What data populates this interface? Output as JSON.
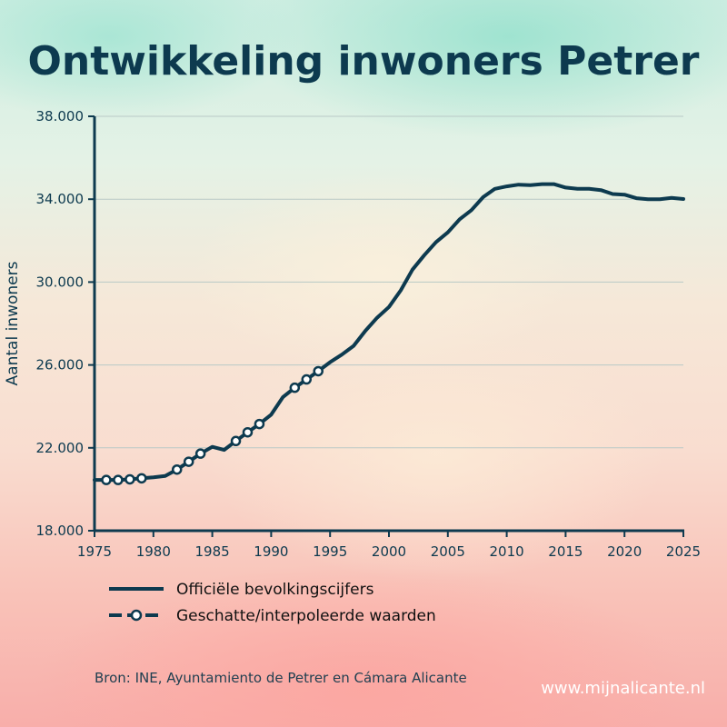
{
  "chart_data": {
    "type": "line",
    "title": "Ontwikkeling inwoners Petrer",
    "xlabel": "",
    "ylabel": "Aantal inwoners",
    "xlim": [
      1975,
      2025
    ],
    "ylim": [
      18000,
      38000
    ],
    "x_ticks": [
      "1975",
      "1980",
      "1985",
      "1990",
      "1995",
      "2000",
      "2005",
      "2010",
      "2015",
      "2020",
      "2025"
    ],
    "y_ticks": [
      "18.000",
      "22.000",
      "26.000",
      "30.000",
      "34.000",
      "38.000"
    ],
    "grid": "horizontal",
    "legend_position": "bottom-left",
    "series": [
      {
        "name": "Officiële bevolkingscijfers",
        "style": "solid",
        "x": [
          1975,
          1976,
          1977,
          1978,
          1979,
          1980,
          1981,
          1982,
          1983,
          1984,
          1985,
          1986,
          1987,
          1988,
          1989,
          1990,
          1991,
          1992,
          1993,
          1994,
          1995,
          1996,
          1997,
          1998,
          1999,
          2000,
          2001,
          2002,
          2003,
          2004,
          2005,
          2006,
          2007,
          2008,
          2009,
          2010,
          2011,
          2012,
          2013,
          2014,
          2015,
          2016,
          2017,
          2018,
          2019,
          2020,
          2021,
          2022,
          2023,
          2024,
          2025
        ],
        "y": [
          20450,
          20450,
          20450,
          20480,
          20530,
          20580,
          20640,
          20950,
          21330,
          21720,
          22050,
          21900,
          22330,
          22750,
          23150,
          23600,
          24450,
          24900,
          25300,
          25700,
          26130,
          26500,
          26920,
          27650,
          28280,
          28800,
          29600,
          30600,
          31300,
          31930,
          32400,
          33030,
          33470,
          34100,
          34500,
          34620,
          34700,
          34680,
          34730,
          34730,
          34560,
          34500,
          34500,
          34440,
          34250,
          34220,
          34050,
          34000,
          34000,
          34060,
          34010
        ]
      },
      {
        "name": "Geschatte/interpoleerde waarden",
        "style": "dashed-markers",
        "x": [
          1976,
          1977,
          1978,
          1979,
          1982,
          1983,
          1984,
          1987,
          1988,
          1989,
          1992,
          1993,
          1994
        ],
        "y": [
          20450,
          20450,
          20480,
          20530,
          20950,
          21330,
          21720,
          22330,
          22750,
          23150,
          24900,
          25300,
          25700
        ]
      }
    ],
    "colors": {
      "line": "#0d3a4f",
      "marker_fill": "#ffffff",
      "grid": "#b9c9c6"
    }
  },
  "footer": {
    "source": "Bron: INE, Ayuntamiento de Petrer en Cámara Alicante",
    "website": "www.mijnalicante.nl"
  }
}
